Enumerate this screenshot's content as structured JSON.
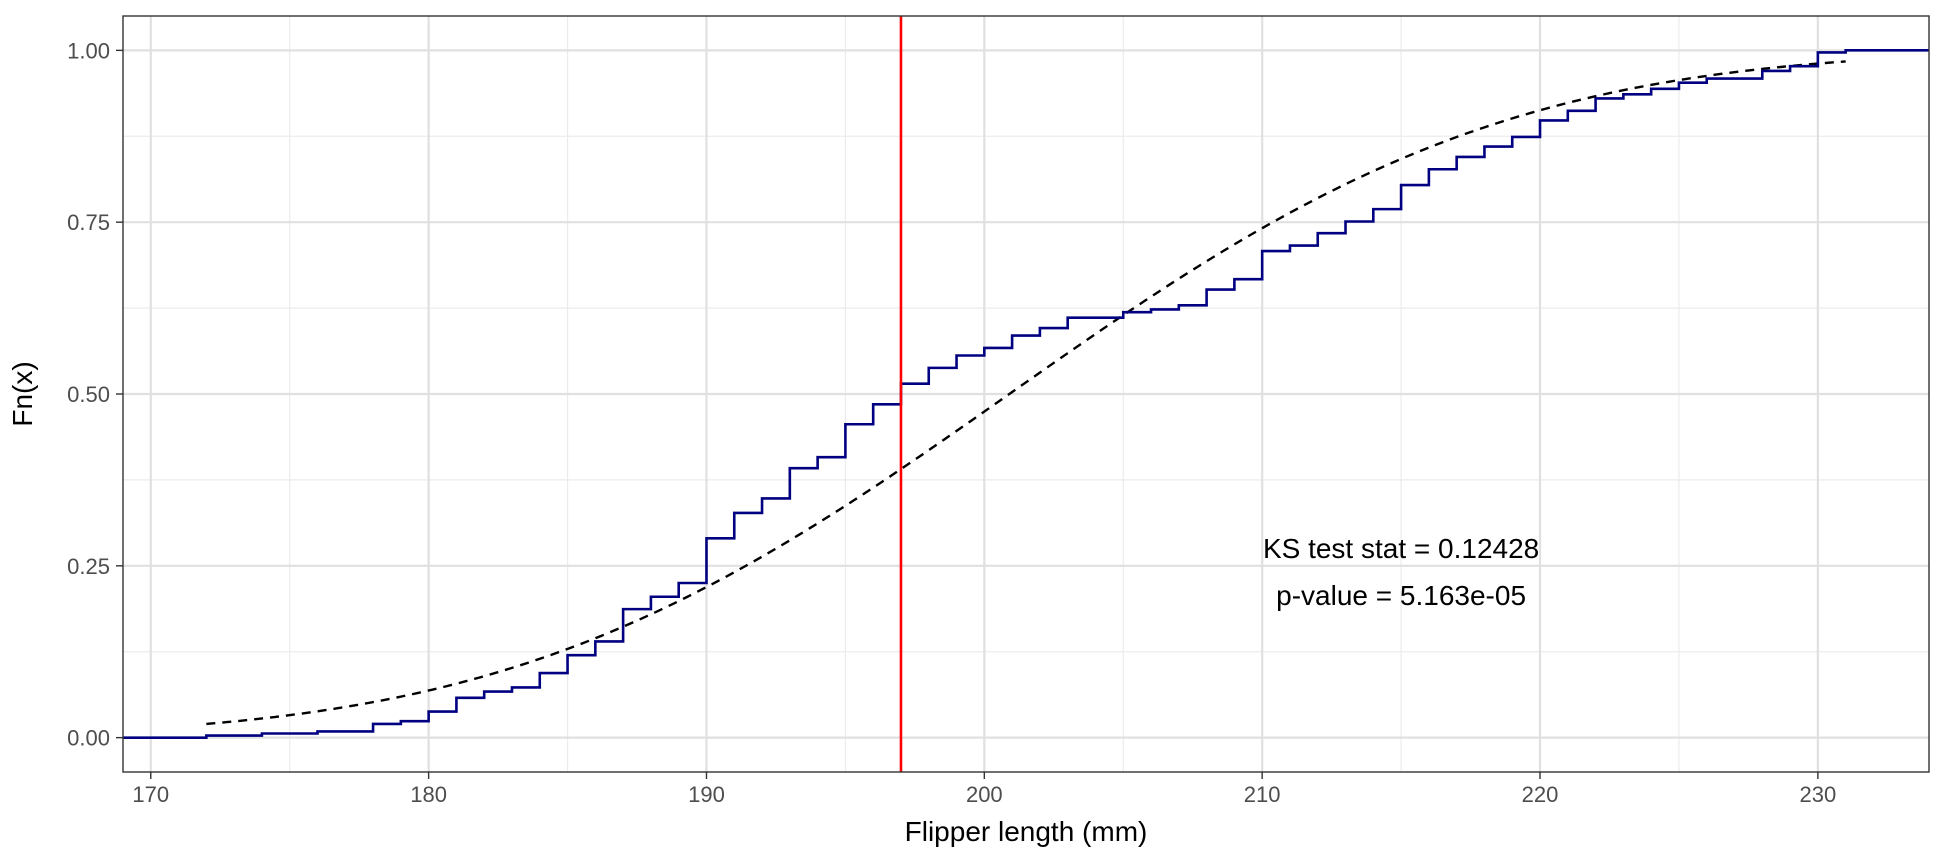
{
  "chart_data": {
    "type": "line",
    "title": "",
    "xlabel": "Flipper length (mm)",
    "ylabel": "Fn(x)",
    "xlim": [
      169,
      234
    ],
    "ylim": [
      -0.05,
      1.05
    ],
    "x_ticks": [
      170,
      180,
      190,
      200,
      210,
      220,
      230
    ],
    "x_tick_labels": [
      "170",
      "180",
      "190",
      "200",
      "210",
      "220",
      "230"
    ],
    "y_ticks": [
      0,
      0.25,
      0.5,
      0.75,
      1
    ],
    "y_tick_labels": [
      "0.00",
      "0.25",
      "0.50",
      "0.75",
      "1.00"
    ],
    "grid": true,
    "legend": "none",
    "series": [
      {
        "kind": "empirical-cdf-step",
        "color": "#000080",
        "points": [
          [
            172,
            0.003
          ],
          [
            174,
            0.006
          ],
          [
            176,
            0.009
          ],
          [
            178,
            0.02
          ],
          [
            179,
            0.024
          ],
          [
            180,
            0.038
          ],
          [
            181,
            0.058
          ],
          [
            182,
            0.067
          ],
          [
            183,
            0.073
          ],
          [
            184,
            0.094
          ],
          [
            185,
            0.12
          ],
          [
            186,
            0.14
          ],
          [
            187,
            0.187
          ],
          [
            188,
            0.205
          ],
          [
            189,
            0.225
          ],
          [
            190,
            0.29
          ],
          [
            191,
            0.327
          ],
          [
            192,
            0.348
          ],
          [
            193,
            0.392
          ],
          [
            194,
            0.408
          ],
          [
            195,
            0.456
          ],
          [
            196,
            0.485
          ],
          [
            197,
            0.515
          ],
          [
            198,
            0.538
          ],
          [
            199,
            0.556
          ],
          [
            200,
            0.567
          ],
          [
            201,
            0.585
          ],
          [
            202,
            0.596
          ],
          [
            203,
            0.611
          ],
          [
            205,
            0.619
          ],
          [
            206,
            0.623
          ],
          [
            207,
            0.629
          ],
          [
            208,
            0.652
          ],
          [
            209,
            0.667
          ],
          [
            210,
            0.708
          ],
          [
            211,
            0.716
          ],
          [
            212,
            0.734
          ],
          [
            213,
            0.751
          ],
          [
            214,
            0.769
          ],
          [
            215,
            0.804
          ],
          [
            216,
            0.827
          ],
          [
            217,
            0.845
          ],
          [
            218,
            0.86
          ],
          [
            219,
            0.874
          ],
          [
            220,
            0.898
          ],
          [
            221,
            0.912
          ],
          [
            222,
            0.93
          ],
          [
            223,
            0.936
          ],
          [
            224,
            0.944
          ],
          [
            225,
            0.953
          ],
          [
            226,
            0.959
          ],
          [
            228,
            0.97
          ],
          [
            229,
            0.977
          ],
          [
            230,
            0.997
          ],
          [
            231,
            1.0
          ]
        ]
      },
      {
        "kind": "normal-cdf-reference",
        "style": "dashed",
        "color": "#000000",
        "mean": 200.9,
        "sd": 14.06,
        "x_range": [
          172,
          231
        ]
      }
    ],
    "vline": {
      "x": 197,
      "color": "#ff0000"
    },
    "annotations": [
      "KS test stat = 0.12428",
      "p-value = 5.163e-05"
    ],
    "annotation_anchor": {
      "x": 215,
      "y": 0.25
    }
  }
}
